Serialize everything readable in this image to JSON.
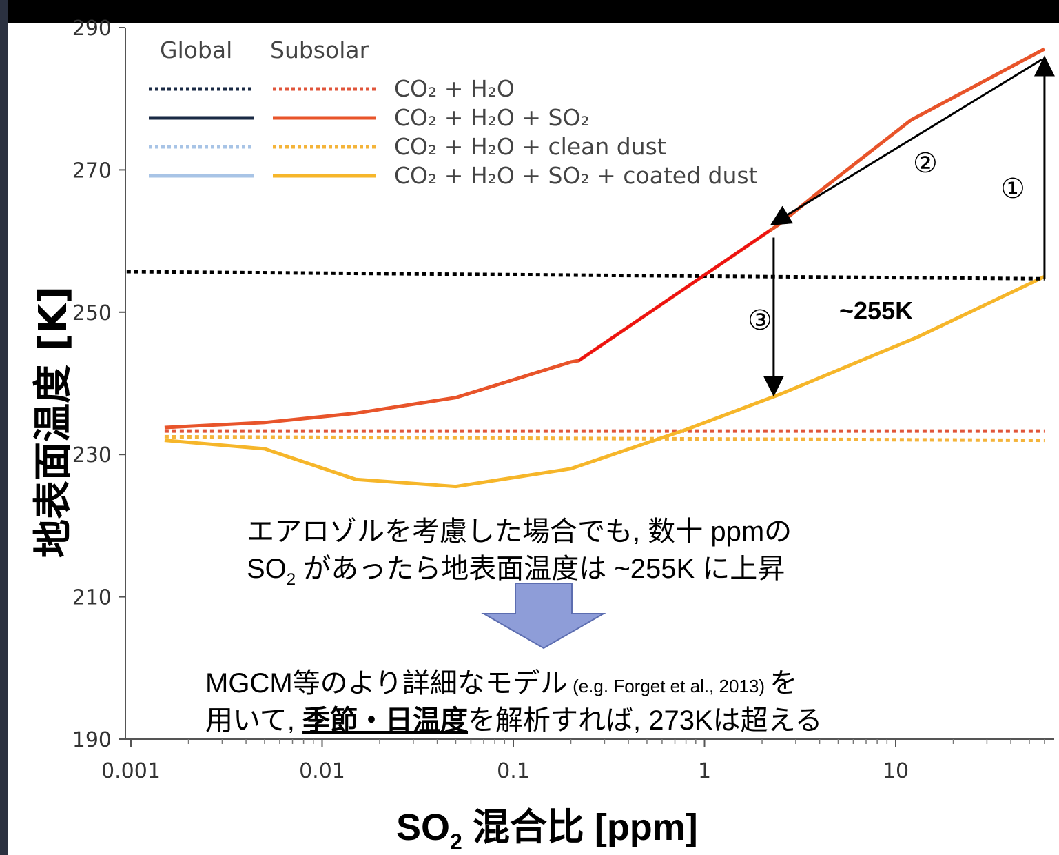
{
  "chart_data": {
    "type": "line",
    "xscale": "log",
    "xlim": [
      0.001,
      60
    ],
    "ylim": [
      190,
      290
    ],
    "x_ticks": [
      "0.001",
      "0.01",
      "0.1",
      "1",
      "10"
    ],
    "y_ticks": [
      "290",
      "270",
      "250",
      "230",
      "210",
      "190"
    ],
    "ylabel": "地表面温度 [K]",
    "xlabel_main": "SO",
    "xlabel_sub": "2",
    "xlabel_rest": " 混合比 [ppm]",
    "legend": {
      "col_global": "Global",
      "col_subsolar": "Subsolar",
      "entries": [
        {
          "label": "CO₂ + H₂O",
          "global_color": "#1a2a44",
          "subsolar_color": "#e0553a",
          "dash": true
        },
        {
          "label": "CO₂ + H₂O + SO₂",
          "global_color": "#1a2a44",
          "subsolar_color": "#e8542a",
          "dash": false
        },
        {
          "label": "CO₂ + H₂O + clean dust",
          "global_color": "#a8c4e6",
          "subsolar_color": "#f4b43a",
          "dash": true
        },
        {
          "label": "CO₂ + H₂O + SO₂ + coated dust",
          "global_color": "#a8c4e6",
          "subsolar_color": "#f6b62a",
          "dash": false
        }
      ]
    },
    "series": [
      {
        "key": "so2",
        "color": "#e8542a",
        "dash": false,
        "x": [
          0.0015,
          0.005,
          0.015,
          0.05,
          0.2,
          0.22,
          2.5,
          4,
          12,
          60
        ],
        "y": [
          233.8,
          234.5,
          235.8,
          238,
          243,
          243.2,
          262.5,
          267,
          277,
          287
        ]
      },
      {
        "key": "co2h2o",
        "color": "#e0553a",
        "dash": true,
        "x": [
          0.0015,
          60
        ],
        "y": [
          233.3,
          233.3
        ]
      },
      {
        "key": "clean_dust",
        "color": "#f4b43a",
        "dash": true,
        "x": [
          0.0015,
          60
        ],
        "y": [
          232.5,
          232
        ]
      },
      {
        "key": "coated_dust",
        "color": "#f6b62a",
        "dash": false,
        "x": [
          0.0015,
          0.005,
          0.015,
          0.05,
          0.2,
          0.8,
          2.5,
          13,
          60
        ],
        "y": [
          232,
          230.8,
          226.5,
          225.5,
          228,
          233.5,
          238.5,
          246.5,
          255
        ]
      },
      {
        "key": "global_ref",
        "color": "#000000",
        "dash": true,
        "x": [
          0.00095,
          60
        ],
        "y": [
          255.7,
          254.7
        ]
      }
    ],
    "highlight": {
      "color": "#ee1111",
      "x": [
        0.22,
        2.2
      ],
      "y": [
        243.2,
        261.5
      ]
    },
    "arrows": [
      {
        "label": "①",
        "x": [
          60,
          60
        ],
        "y": [
          254.7,
          285.5
        ]
      },
      {
        "label": "②",
        "x": [
          58,
          2.3
        ],
        "y": [
          285.5,
          262.5
        ]
      },
      {
        "label": "③",
        "x": [
          2.3,
          2.3
        ],
        "y": [
          260.5,
          238.7
        ]
      }
    ],
    "k255_label": "~255K"
  },
  "annotations": {
    "line1": "エアロゾルを考慮した場合でも, 数十 ppmの",
    "line2a": "SO",
    "line2sub": "2",
    "line2b": " があったら地表面温度は ~255K に上昇",
    "line3a": "MGCM等のより詳細なモデル",
    "line3cite": " (e.g. Forget et al., 2013) ",
    "line3b": "を",
    "line4a": "用いて, ",
    "line4u": "季節・日温度",
    "line4b": "を解析すれば, 273Kは超える"
  }
}
